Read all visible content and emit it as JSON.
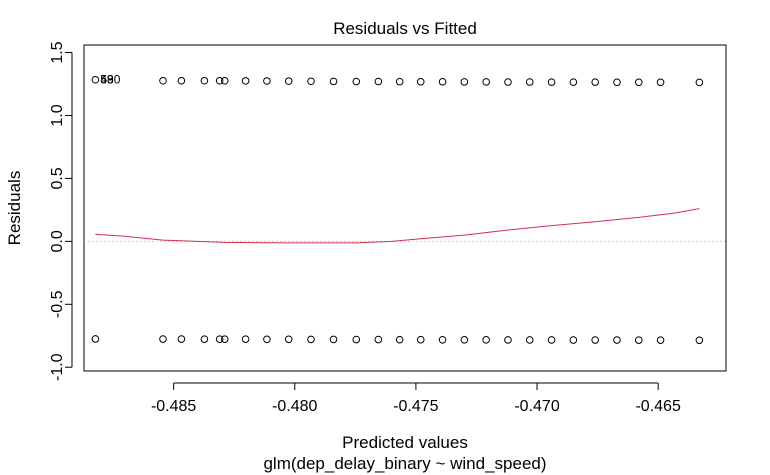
{
  "chart_data": {
    "type": "scatter",
    "title": "Residuals vs Fitted",
    "xlabel": "Predicted values",
    "subtitle": "glm(dep_delay_binary ~ wind_speed)",
    "ylabel": "Residuals",
    "xlim": [
      -0.4887,
      -0.4622
    ],
    "ylim": [
      -1.03,
      1.56
    ],
    "xticks": [
      -0.485,
      -0.48,
      -0.475,
      -0.47,
      -0.465
    ],
    "xtick_labels": [
      "-0.485",
      "-0.480",
      "-0.475",
      "-0.470",
      "-0.465"
    ],
    "yticks": [
      -1.0,
      -0.5,
      0.0,
      0.5,
      1.0,
      1.5
    ],
    "ytick_labels": [
      "-1.0",
      "-0.5",
      "0.0",
      "0.5",
      "1.0",
      "1.5"
    ],
    "grid": false,
    "reference_line": {
      "y": 0,
      "style": "dotted",
      "color": "#bbbbbb"
    },
    "series": [
      {
        "kind": "points",
        "marker": "open-circle",
        "color": "#000000",
        "x": [
          -0.48823,
          -0.48544,
          -0.48468,
          -0.48373,
          -0.4831,
          -0.48289,
          -0.48203,
          -0.48115,
          -0.48025,
          -0.47933,
          -0.4784,
          -0.47746,
          -0.47655,
          -0.47567,
          -0.4748,
          -0.4739,
          -0.473,
          -0.4721,
          -0.4712,
          -0.4703,
          -0.4694,
          -0.4685,
          -0.4676,
          -0.4667,
          -0.4658,
          -0.4649,
          -0.4633
        ],
        "y_upper": [
          1.284,
          1.276,
          1.276,
          1.276,
          1.276,
          1.276,
          1.275,
          1.274,
          1.273,
          1.272,
          1.271,
          1.27,
          1.27,
          1.269,
          1.268,
          1.268,
          1.267,
          1.267,
          1.266,
          1.266,
          1.265,
          1.265,
          1.265,
          1.264,
          1.264,
          1.264,
          1.263
        ],
        "y_lower": [
          -0.775,
          -0.776,
          -0.776,
          -0.777,
          -0.777,
          -0.777,
          -0.777,
          -0.778,
          -0.778,
          -0.779,
          -0.779,
          -0.78,
          -0.78,
          -0.781,
          -0.781,
          -0.782,
          -0.782,
          -0.782,
          -0.783,
          -0.783,
          -0.783,
          -0.784,
          -0.784,
          -0.784,
          -0.785,
          -0.785,
          -0.786
        ]
      },
      {
        "kind": "smooth",
        "color": "#d2324e",
        "x": [
          -0.48823,
          -0.487,
          -0.48544,
          -0.484,
          -0.48289,
          -0.4815,
          -0.48025,
          -0.479,
          -0.4775,
          -0.476,
          -0.4748,
          -0.473,
          -0.4712,
          -0.4694,
          -0.4676,
          -0.4658,
          -0.4643,
          -0.4633
        ],
        "y": [
          0.055,
          0.04,
          0.01,
          0.0,
          -0.008,
          -0.01,
          -0.012,
          -0.012,
          -0.012,
          0.0,
          0.02,
          0.05,
          0.09,
          0.125,
          0.155,
          0.19,
          0.225,
          0.26
        ]
      }
    ],
    "point_labels": [
      {
        "text": "530",
        "x": -0.48823,
        "y": 1.284
      },
      {
        "text": "58",
        "x": -0.48823,
        "y": 1.284
      },
      {
        "text": "49",
        "x": -0.48823,
        "y": 1.284
      }
    ]
  }
}
